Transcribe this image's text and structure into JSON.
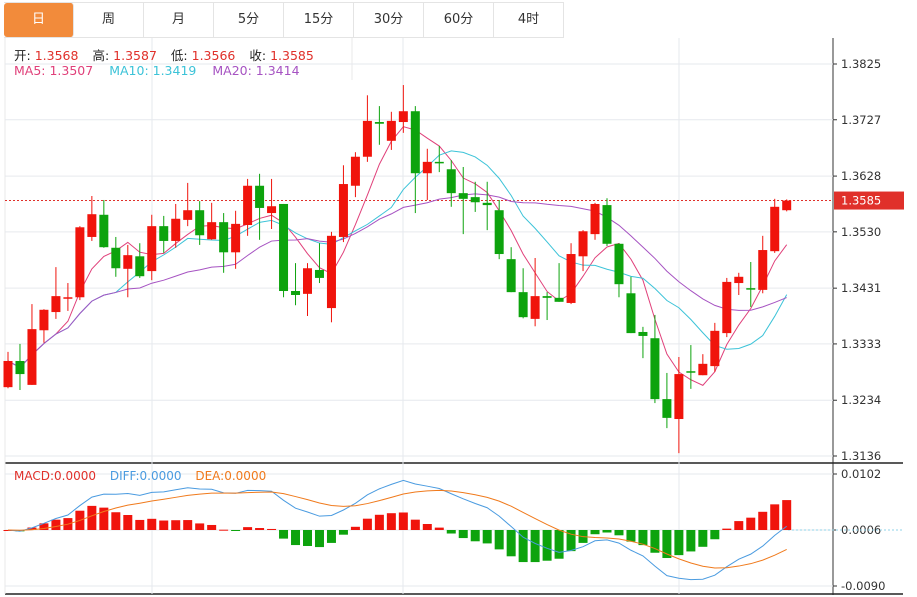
{
  "tabs": [
    {
      "label": "日",
      "active": true
    },
    {
      "label": "周"
    },
    {
      "label": "月"
    },
    {
      "label": "5分"
    },
    {
      "label": "15分"
    },
    {
      "label": "30分"
    },
    {
      "label": "60分"
    },
    {
      "label": "4时"
    }
  ],
  "ohlc_legend": {
    "open_label": "开:",
    "open": "1.3568",
    "high_label": "高:",
    "high": "1.3587",
    "low_label": "低:",
    "low": "1.3566",
    "close_label": "收:",
    "close": "1.3585"
  },
  "ma_legend": {
    "ma5": "MA5: 1.3507",
    "ma10": "MA10: 1.3419",
    "ma20": "MA20: 1.3414"
  },
  "macd_legend": {
    "macd": "MACD:0.0000",
    "diff": "DIFF:0.0000",
    "dea": "DEA:0.0000"
  },
  "colors": {
    "up": "#f0140c",
    "down": "#0da30d",
    "ma5": "#e0407a",
    "ma10": "#3cc3d8",
    "ma20": "#a653c2",
    "diff": "#4a9be0",
    "dea": "#f07a1c",
    "active_tab": "#f28b3b",
    "last_price": "#e0302a"
  },
  "chart_data": [
    {
      "type": "candlestick",
      "y_ticks": [
        "1.3825",
        "1.3727",
        "1.3628",
        "1.3530",
        "1.3431",
        "1.3333",
        "1.3234",
        "1.3136"
      ],
      "ylim": [
        1.3136,
        1.3825
      ],
      "last_price": "1.3585",
      "grid": true,
      "series_ma": [
        "MA5",
        "MA10",
        "MA20"
      ],
      "candles": [
        [
          1.3257,
          1.3319,
          1.3255,
          1.3303
        ],
        [
          1.3303,
          1.3333,
          1.3252,
          1.328
        ],
        [
          1.3261,
          1.3403,
          1.3261,
          1.3359
        ],
        [
          1.3357,
          1.3394,
          1.3335,
          1.3393
        ],
        [
          1.3389,
          1.3468,
          1.3377,
          1.3417
        ],
        [
          1.3414,
          1.344,
          1.3391,
          1.3415
        ],
        [
          1.3415,
          1.354,
          1.341,
          1.3538
        ],
        [
          1.3521,
          1.3593,
          1.3514,
          1.3561
        ],
        [
          1.356,
          1.3586,
          1.3502,
          1.3503
        ],
        [
          1.3502,
          1.3521,
          1.3451,
          1.3466
        ],
        [
          1.3465,
          1.3507,
          1.3415,
          1.3489
        ],
        [
          1.3487,
          1.351,
          1.3449,
          1.3452
        ],
        [
          1.3461,
          1.356,
          1.3445,
          1.354
        ],
        [
          1.354,
          1.3558,
          1.3493,
          1.3514
        ],
        [
          1.3514,
          1.3579,
          1.3502,
          1.3553
        ],
        [
          1.3551,
          1.3616,
          1.354,
          1.3568
        ],
        [
          1.3568,
          1.3584,
          1.3507,
          1.3524
        ],
        [
          1.3517,
          1.3581,
          1.3516,
          1.3547
        ],
        [
          1.3547,
          1.3563,
          1.3458,
          1.3494
        ],
        [
          1.3494,
          1.3567,
          1.3465,
          1.3544
        ],
        [
          1.3542,
          1.3623,
          1.3523,
          1.3611
        ],
        [
          1.3611,
          1.3632,
          1.3516,
          1.3572
        ],
        [
          1.3563,
          1.3623,
          1.3535,
          1.3575
        ],
        [
          1.3579,
          1.3579,
          1.3415,
          1.3426
        ],
        [
          1.3426,
          1.3475,
          1.3401,
          1.3419
        ],
        [
          1.3421,
          1.3475,
          1.3382,
          1.3466
        ],
        [
          1.3463,
          1.351,
          1.344,
          1.3449
        ],
        [
          1.3396,
          1.353,
          1.3371,
          1.3523
        ],
        [
          1.3521,
          1.3647,
          1.3512,
          1.3614
        ],
        [
          1.3611,
          1.367,
          1.3591,
          1.3662
        ],
        [
          1.3662,
          1.377,
          1.3653,
          1.3725
        ],
        [
          1.3723,
          1.3751,
          1.3683,
          1.372
        ],
        [
          1.369,
          1.3741,
          1.3674,
          1.3725
        ],
        [
          1.3723,
          1.3788,
          1.3704,
          1.3742
        ],
        [
          1.3742,
          1.3751,
          1.3563,
          1.3633
        ],
        [
          1.3633,
          1.3676,
          1.3586,
          1.3653
        ],
        [
          1.3653,
          1.3681,
          1.3635,
          1.3651
        ],
        [
          1.364,
          1.3656,
          1.3574,
          1.3598
        ],
        [
          1.3598,
          1.3644,
          1.3526,
          1.3588
        ],
        [
          1.3591,
          1.3618,
          1.3565,
          1.3582
        ],
        [
          1.3581,
          1.3618,
          1.3533,
          1.3577
        ],
        [
          1.3568,
          1.3586,
          1.3482,
          1.3491
        ],
        [
          1.3482,
          1.3503,
          1.3424,
          1.3424
        ],
        [
          1.3424,
          1.3466,
          1.3378,
          1.338
        ],
        [
          1.3377,
          1.3484,
          1.3364,
          1.3417
        ],
        [
          1.3417,
          1.3424,
          1.3375,
          1.3414
        ],
        [
          1.3414,
          1.3475,
          1.3407,
          1.3407
        ],
        [
          1.3405,
          1.351,
          1.3403,
          1.3491
        ],
        [
          1.3487,
          1.3533,
          1.3461,
          1.3531
        ],
        [
          1.3526,
          1.3581,
          1.3516,
          1.3579
        ],
        [
          1.3577,
          1.3589,
          1.3505,
          1.3509
        ],
        [
          1.3509,
          1.351,
          1.3415,
          1.3438
        ],
        [
          1.3422,
          1.3451,
          1.3352,
          1.3352
        ],
        [
          1.3354,
          1.3363,
          1.3308,
          1.3347
        ],
        [
          1.3343,
          1.3384,
          1.3229,
          1.3236
        ],
        [
          1.3236,
          1.3282,
          1.3185,
          1.3203
        ],
        [
          1.3201,
          1.331,
          1.3141,
          1.328
        ],
        [
          1.3285,
          1.3331,
          1.3254,
          1.3284
        ],
        [
          1.3278,
          1.3315,
          1.3278,
          1.3298
        ],
        [
          1.3294,
          1.337,
          1.3284,
          1.3356
        ],
        [
          1.3352,
          1.3449,
          1.3345,
          1.3442
        ],
        [
          1.344,
          1.3458,
          1.3419,
          1.3451
        ],
        [
          1.3431,
          1.3477,
          1.3398,
          1.3429
        ],
        [
          1.3428,
          1.3523,
          1.3422,
          1.3498
        ],
        [
          1.3496,
          1.3588,
          1.3493,
          1.3574
        ],
        [
          1.3568,
          1.3587,
          1.3566,
          1.3585
        ]
      ]
    },
    {
      "type": "bar",
      "indicator": "MACD",
      "y_ticks": [
        "0.0102",
        "0.0006",
        "-0.0090"
      ],
      "ylim": [
        -0.009,
        0.0102
      ]
    }
  ]
}
